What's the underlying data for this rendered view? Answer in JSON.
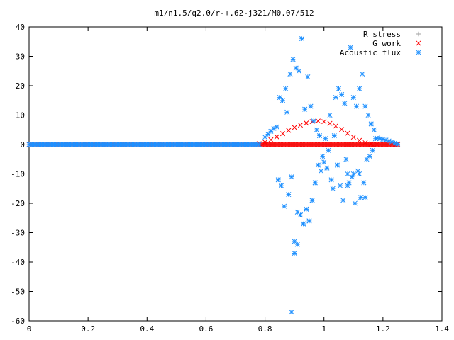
{
  "chart_data": {
    "type": "scatter",
    "title": "m1/n1.5/q2.0/r-+.62-j321/M0.07/512",
    "xlabel": "",
    "ylabel": "",
    "xlim": [
      0,
      1.4
    ],
    "ylim": [
      -60,
      40
    ],
    "grid": false,
    "legend_position": "top-right",
    "x_ticks": [
      "0",
      "0.2",
      "0.4",
      "0.6",
      "0.8",
      "1",
      "1.2",
      "1.4"
    ],
    "y_ticks": [
      "40",
      "30",
      "20",
      "10",
      "0",
      "-10",
      "-20",
      "-30",
      "-40",
      "-50",
      "-60"
    ],
    "series": [
      {
        "name": "R stress",
        "marker": "+",
        "color": "#a0a0a0",
        "baseline": {
          "x_start": 0.0,
          "x_end": 1.25,
          "step": 0.005,
          "y": 0
        },
        "points": []
      },
      {
        "name": "G work",
        "marker": "x",
        "color": "#ff0000",
        "baseline": {
          "x_start": 0.0,
          "x_end": 1.25,
          "step": 0.005,
          "y": 0
        },
        "points": [
          [
            0.78,
            0.3
          ],
          [
            0.8,
            0.8
          ],
          [
            0.82,
            1.6
          ],
          [
            0.84,
            2.6
          ],
          [
            0.86,
            3.7
          ],
          [
            0.88,
            4.8
          ],
          [
            0.9,
            5.8
          ],
          [
            0.92,
            6.6
          ],
          [
            0.94,
            7.3
          ],
          [
            0.96,
            7.8
          ],
          [
            0.98,
            8.0
          ],
          [
            1.0,
            7.8
          ],
          [
            1.02,
            7.2
          ],
          [
            1.04,
            6.3
          ],
          [
            1.06,
            5.1
          ],
          [
            1.08,
            3.8
          ],
          [
            1.1,
            2.5
          ],
          [
            1.12,
            1.4
          ],
          [
            1.14,
            0.6
          ],
          [
            1.16,
            0.2
          ],
          [
            1.18,
            0.05
          ]
        ]
      },
      {
        "name": "Acoustic flux",
        "marker": "*",
        "color": "#1e90ff",
        "baseline": {
          "x_start": 0.0,
          "x_end": 0.78,
          "step": 0.005,
          "y": 0
        },
        "points": [
          [
            0.8,
            2.5
          ],
          [
            0.81,
            3.5
          ],
          [
            0.82,
            4.5
          ],
          [
            0.83,
            5.5
          ],
          [
            0.84,
            6.0
          ],
          [
            0.845,
            -12
          ],
          [
            0.85,
            16
          ],
          [
            0.855,
            -14
          ],
          [
            0.86,
            15
          ],
          [
            0.865,
            -21
          ],
          [
            0.87,
            19
          ],
          [
            0.875,
            11
          ],
          [
            0.88,
            -17
          ],
          [
            0.885,
            24
          ],
          [
            0.89,
            -11
          ],
          [
            0.895,
            29
          ],
          [
            0.9,
            -37
          ],
          [
            0.905,
            26
          ],
          [
            0.91,
            -34
          ],
          [
            0.915,
            25
          ],
          [
            0.92,
            -24
          ],
          [
            0.925,
            36
          ],
          [
            0.93,
            -27
          ],
          [
            0.935,
            12
          ],
          [
            0.94,
            -22
          ],
          [
            0.945,
            23
          ],
          [
            0.95,
            -26
          ],
          [
            0.955,
            13
          ],
          [
            0.96,
            -19
          ],
          [
            0.965,
            8
          ],
          [
            0.97,
            -13
          ],
          [
            0.975,
            5
          ],
          [
            0.98,
            -7
          ],
          [
            0.985,
            3
          ],
          [
            0.99,
            -9
          ],
          [
            0.995,
            -4
          ],
          [
            1.0,
            -6
          ],
          [
            1.005,
            2
          ],
          [
            1.01,
            -8
          ],
          [
            1.015,
            -2
          ],
          [
            1.02,
            10
          ],
          [
            1.025,
            -12
          ],
          [
            1.03,
            -15
          ],
          [
            1.035,
            3
          ],
          [
            1.04,
            16
          ],
          [
            1.045,
            -7
          ],
          [
            1.05,
            19
          ],
          [
            1.055,
            -14
          ],
          [
            1.06,
            17
          ],
          [
            1.065,
            -19
          ],
          [
            1.07,
            14
          ],
          [
            1.075,
            -5
          ],
          [
            1.08,
            -10
          ],
          [
            1.085,
            -13
          ],
          [
            1.09,
            33
          ],
          [
            1.095,
            -11
          ],
          [
            1.1,
            16
          ],
          [
            1.105,
            -20
          ],
          [
            1.11,
            13
          ],
          [
            1.115,
            -9
          ],
          [
            1.12,
            19
          ],
          [
            1.125,
            -18
          ],
          [
            1.13,
            24
          ],
          [
            1.135,
            -13
          ],
          [
            1.14,
            13
          ],
          [
            1.145,
            -5
          ],
          [
            1.15,
            10
          ],
          [
            1.155,
            -4
          ],
          [
            1.16,
            7
          ],
          [
            1.165,
            -2
          ],
          [
            1.17,
            5
          ],
          [
            1.175,
            2
          ],
          [
            1.18,
            2.2
          ],
          [
            1.19,
            2.0
          ],
          [
            1.2,
            1.8
          ],
          [
            1.21,
            1.5
          ],
          [
            1.22,
            1.2
          ],
          [
            1.23,
            0.9
          ],
          [
            1.24,
            0.5
          ],
          [
            1.25,
            0.2
          ],
          [
            0.89,
            -57
          ],
          [
            0.9,
            -33
          ],
          [
            0.91,
            -23
          ],
          [
            0.92,
            -24
          ],
          [
            0.93,
            -27
          ],
          [
            0.94,
            -22
          ],
          [
            0.95,
            -26
          ],
          [
            0.96,
            -19
          ],
          [
            0.97,
            -13
          ],
          [
            1.08,
            -14
          ],
          [
            1.1,
            -10
          ],
          [
            1.12,
            -10
          ],
          [
            1.14,
            -18
          ]
        ]
      }
    ]
  }
}
